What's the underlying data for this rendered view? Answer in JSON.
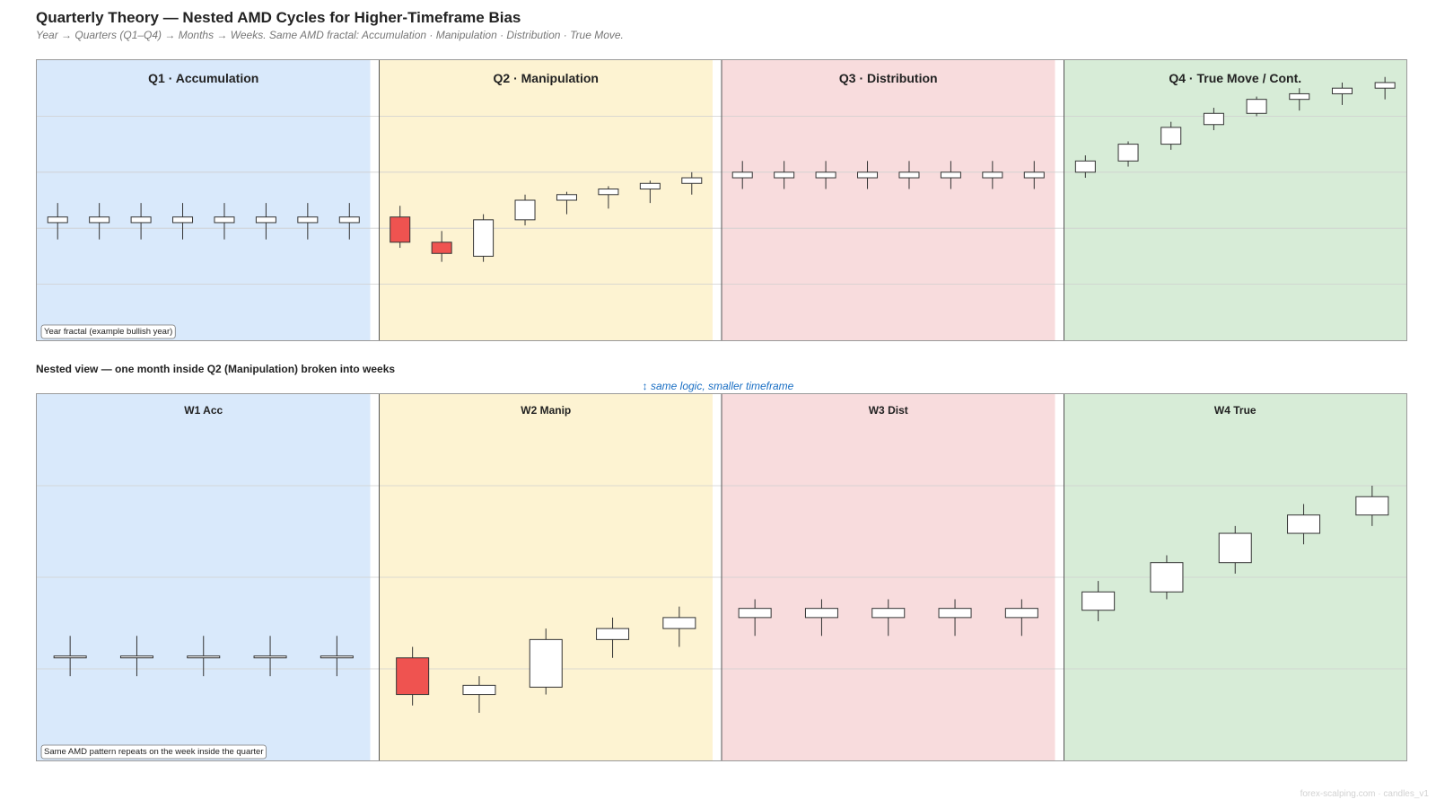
{
  "header": {
    "title": "Quarterly Theory — Nested AMD Cycles for Higher-Timeframe Bias",
    "subtitle": "Year → Quarters (Q1–Q4) → Months → Weeks. Same AMD fractal: Accumulation · Manipulation · Distribution · True Move."
  },
  "nested": {
    "section_title": "Nested view — one month inside Q2 (Manipulation) broken into weeks",
    "note": "↕ same logic, smaller timeframe"
  },
  "footer": {
    "text": "forex-scalping.com · candles_v1"
  },
  "colors": {
    "accumulation": "#d9e9fb",
    "manipulation": "#fdf3d2",
    "distribution": "#f8dcdd",
    "true_move": "#d7ecd7",
    "bear_candle": "#ef5350",
    "bull_candle": "#ffffff",
    "grid": "#cfcfcf"
  },
  "chart_data": [
    {
      "type": "candlestick",
      "caption": "Year fractal (example bullish year)",
      "ylim": [
        0,
        100
      ],
      "phases": [
        {
          "label": "Q1 · Accumulation",
          "kind": "accumulation"
        },
        {
          "label": "Q2 · Manipulation",
          "kind": "manipulation"
        },
        {
          "label": "Q3 · Distribution",
          "kind": "distribution"
        },
        {
          "label": "Q4 · True Move / Cont.",
          "kind": "true_move"
        }
      ],
      "candles": [
        [
          {
            "o": 42,
            "h": 49,
            "l": 36,
            "c": 44
          },
          {
            "o": 42,
            "h": 49,
            "l": 36,
            "c": 44
          },
          {
            "o": 42,
            "h": 49,
            "l": 36,
            "c": 44
          },
          {
            "o": 42,
            "h": 49,
            "l": 36,
            "c": 44
          },
          {
            "o": 42,
            "h": 49,
            "l": 36,
            "c": 44
          },
          {
            "o": 42,
            "h": 49,
            "l": 36,
            "c": 44
          },
          {
            "o": 42,
            "h": 49,
            "l": 36,
            "c": 44
          },
          {
            "o": 42,
            "h": 49,
            "l": 36,
            "c": 44
          }
        ],
        [
          {
            "o": 44,
            "h": 48,
            "l": 33,
            "c": 35
          },
          {
            "o": 35,
            "h": 39,
            "l": 28,
            "c": 31
          },
          {
            "o": 30,
            "h": 45,
            "l": 28,
            "c": 43
          },
          {
            "o": 43,
            "h": 52,
            "l": 41,
            "c": 50
          },
          {
            "o": 50,
            "h": 53,
            "l": 45,
            "c": 52
          },
          {
            "o": 52,
            "h": 55,
            "l": 47,
            "c": 54
          },
          {
            "o": 54,
            "h": 57,
            "l": 49,
            "c": 56
          },
          {
            "o": 56,
            "h": 60,
            "l": 52,
            "c": 58
          }
        ],
        [
          {
            "o": 58,
            "h": 64,
            "l": 54,
            "c": 60
          },
          {
            "o": 58,
            "h": 64,
            "l": 54,
            "c": 60
          },
          {
            "o": 58,
            "h": 64,
            "l": 54,
            "c": 60
          },
          {
            "o": 58,
            "h": 64,
            "l": 54,
            "c": 60
          },
          {
            "o": 58,
            "h": 64,
            "l": 54,
            "c": 60
          },
          {
            "o": 58,
            "h": 64,
            "l": 54,
            "c": 60
          },
          {
            "o": 58,
            "h": 64,
            "l": 54,
            "c": 60
          },
          {
            "o": 58,
            "h": 64,
            "l": 54,
            "c": 60
          }
        ],
        [
          {
            "o": 60,
            "h": 66,
            "l": 58,
            "c": 64
          },
          {
            "o": 64,
            "h": 71,
            "l": 62,
            "c": 70
          },
          {
            "o": 70,
            "h": 78,
            "l": 68,
            "c": 76
          },
          {
            "o": 77,
            "h": 83,
            "l": 75,
            "c": 81
          },
          {
            "o": 81,
            "h": 87,
            "l": 80,
            "c": 86
          },
          {
            "o": 86,
            "h": 90,
            "l": 82,
            "c": 88
          },
          {
            "o": 88,
            "h": 92,
            "l": 84,
            "c": 90
          },
          {
            "o": 90,
            "h": 94,
            "l": 86,
            "c": 92
          }
        ]
      ]
    },
    {
      "type": "candlestick",
      "caption": "Same AMD pattern repeats on the week inside the quarter",
      "ylim": [
        0,
        100
      ],
      "phases": [
        {
          "label": "W1 Acc",
          "kind": "accumulation"
        },
        {
          "label": "W2 Manip",
          "kind": "manipulation"
        },
        {
          "label": "W3 Dist",
          "kind": "distribution"
        },
        {
          "label": "W4 True",
          "kind": "true_move"
        }
      ],
      "candles": [
        [
          {
            "o": 28,
            "h": 34,
            "l": 23,
            "c": 28.5
          },
          {
            "o": 28,
            "h": 34,
            "l": 23,
            "c": 28.5
          },
          {
            "o": 28,
            "h": 34,
            "l": 23,
            "c": 28.5
          },
          {
            "o": 28,
            "h": 34,
            "l": 23,
            "c": 28.5
          },
          {
            "o": 28,
            "h": 34,
            "l": 23,
            "c": 28.5
          }
        ],
        [
          {
            "o": 28,
            "h": 31,
            "l": 15,
            "c": 18
          },
          {
            "o": 18,
            "h": 23,
            "l": 13,
            "c": 20.5
          },
          {
            "o": 20,
            "h": 36,
            "l": 18,
            "c": 33
          },
          {
            "o": 33,
            "h": 39,
            "l": 28,
            "c": 36
          },
          {
            "o": 36,
            "h": 42,
            "l": 31,
            "c": 39
          }
        ],
        [
          {
            "o": 39,
            "h": 44,
            "l": 34,
            "c": 41.5
          },
          {
            "o": 39,
            "h": 44,
            "l": 34,
            "c": 41.5
          },
          {
            "o": 39,
            "h": 44,
            "l": 34,
            "c": 41.5
          },
          {
            "o": 39,
            "h": 44,
            "l": 34,
            "c": 41.5
          },
          {
            "o": 39,
            "h": 44,
            "l": 34,
            "c": 41.5
          }
        ],
        [
          {
            "o": 41,
            "h": 49,
            "l": 38,
            "c": 46
          },
          {
            "o": 46,
            "h": 56,
            "l": 44,
            "c": 54
          },
          {
            "o": 54,
            "h": 64,
            "l": 51,
            "c": 62
          },
          {
            "o": 62,
            "h": 70,
            "l": 59,
            "c": 67
          },
          {
            "o": 67,
            "h": 75,
            "l": 64,
            "c": 72
          }
        ]
      ]
    }
  ]
}
